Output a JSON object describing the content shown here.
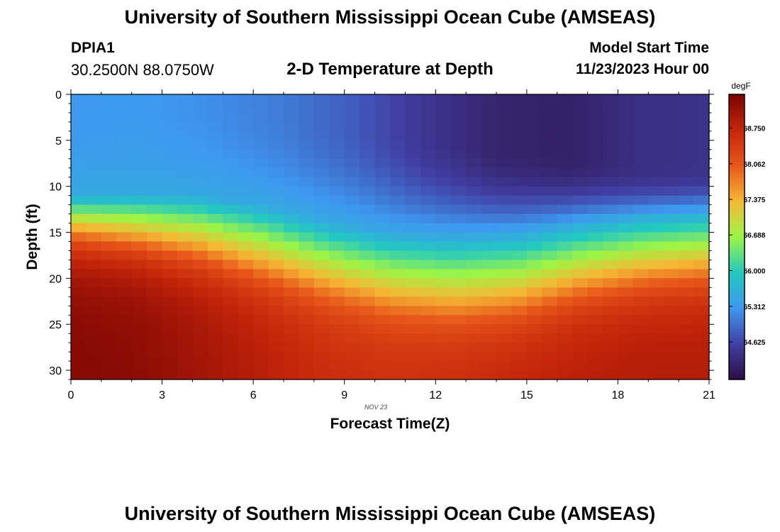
{
  "header": {
    "title": "University of Southern Mississippi Ocean Cube (AMSEAS)",
    "station": "DPIA1",
    "coords": "30.2500N  88.0750W",
    "subtitle": "2-D Temperature at Depth",
    "start_label": "Model Start Time",
    "start_value": "11/23/2023 Hour 00"
  },
  "footer": {
    "title": "University of Southern Mississippi Ocean Cube (AMSEAS)"
  },
  "chart_data": {
    "type": "heatmap",
    "title": "2-D Temperature at Depth",
    "xlabel": "Forecast Time(Z)",
    "ylabel": "Depth (ft)",
    "x_sublabel": "NOV 23",
    "xlim": [
      0,
      21
    ],
    "ylim": [
      0,
      31
    ],
    "y_inverted": true,
    "x_ticks": [
      "0",
      "3",
      "6",
      "9",
      "12",
      "15",
      "18",
      "21"
    ],
    "y_ticks": [
      "0",
      "5",
      "10",
      "15",
      "20",
      "25",
      "30"
    ],
    "colorbar": {
      "unit": "degF",
      "range": [
        63.9,
        69.4
      ],
      "ticks": [
        "68.750",
        "68.062",
        "67.375",
        "66.688",
        "66.000",
        "65.312",
        "64.625"
      ],
      "colors": [
        "#2d0f44",
        "#413fa4",
        "#3e98f0",
        "#22c9c0",
        "#9df545",
        "#f5b835",
        "#e8571a",
        "#c5250a",
        "#7a0403"
      ]
    },
    "grid_hours": 42,
    "grid_depths": 31,
    "surface_temps": [
      65.28,
      65.3,
      65.2,
      65.05,
      64.8,
      64.45,
      64.2,
      64.15,
      64.35,
      64.4
    ],
    "profile_top_depths": [
      0,
      0.5,
      1,
      2,
      3,
      4,
      5,
      6,
      7,
      8,
      8
    ],
    "layer_center_depths": [
      13,
      13.3,
      14,
      15.5,
      17.5,
      19,
      19.5,
      19,
      17.5,
      16.5,
      16
    ],
    "layer_halfwidths": [
      2,
      2.5,
      3,
      3.5,
      3.7,
      3.9,
      4,
      3.8,
      3.5,
      3.3,
      3.2
    ],
    "bottom_temps": [
      69.3,
      69.25,
      69.05,
      68.85,
      68.65,
      68.6,
      68.65,
      68.75,
      68.85,
      68.9,
      68.9
    ]
  }
}
